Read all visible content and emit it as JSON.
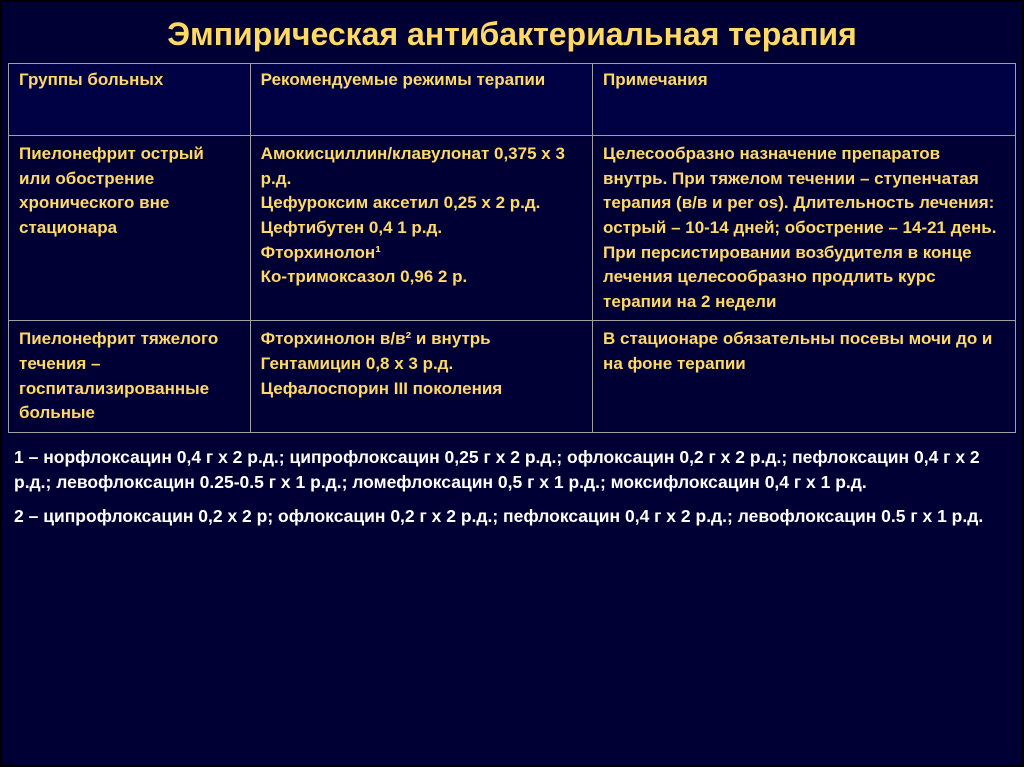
{
  "title": "Эмпирическая антибактериальная терапия",
  "columns": [
    "Группы больных",
    "Рекомендуемые режимы терапии",
    "Примечания"
  ],
  "rows": [
    {
      "group": "Пиелонефрит острый или обострение хронического вне стационара",
      "regimen": "Амокисциллин/клавулонат 0,375 х 3 р.д.\nЦефуроксим аксетил 0,25 х 2 р.д.\nЦефтибутен 0,4 1 р.д.\nФторхинолон¹\nКо-тримоксазол 0,96 2 р.",
      "notes": "Целесообразно назначение препаратов внутрь. При тяжелом течении – ступенчатая терапия (в/в и per os). Длительность лечения: острый – 10-14 дней; обострение – 14-21 день. При персистировании возбудителя в конце лечения целесообразно продлить курс терапии на 2 недели"
    },
    {
      "group": "Пиелонефрит тяжелого течения – госпитализированные больные",
      "regimen": "Фторхинолон в/в² и внутрь\nГентамицин 0,8 х 3 р.д.\nЦефалоспорин III поколения",
      "notes": "В стационаре обязательны посевы мочи до и на фоне терапии"
    }
  ],
  "footnotes": [
    "1 – норфлоксацин 0,4 г х 2 р.д.; ципрофлоксацин 0,25 г х 2 р.д.; офлоксацин 0,2 г х 2 р.д.; пефлоксацин 0,4 г х 2 р.д.; левофлоксацин 0.25-0.5 г х 1 р.д.; ломефлоксацин 0,5 г х 1 р.д.; моксифлоксацин 0,4 г х 1 р.д.",
    "2 – ципрофлоксацин 0,2 х 2 р; офлоксацин 0,2 г х 2 р.д.; пефлоксацин 0,4 г х 2 р.д.; левофлоксацин 0.5 г х 1 р.д."
  ],
  "colors": {
    "background": "#000035",
    "title": "#ffd966",
    "cell_text": "#ffd966",
    "footnote_text": "#ffffff",
    "border": "#a0a0a0"
  },
  "typography": {
    "title_fontsize": 32,
    "cell_fontsize": 17,
    "footnote_fontsize": 17.5,
    "font_family": "Arial"
  },
  "layout": {
    "col_widths_pct": [
      24,
      34,
      42
    ]
  }
}
